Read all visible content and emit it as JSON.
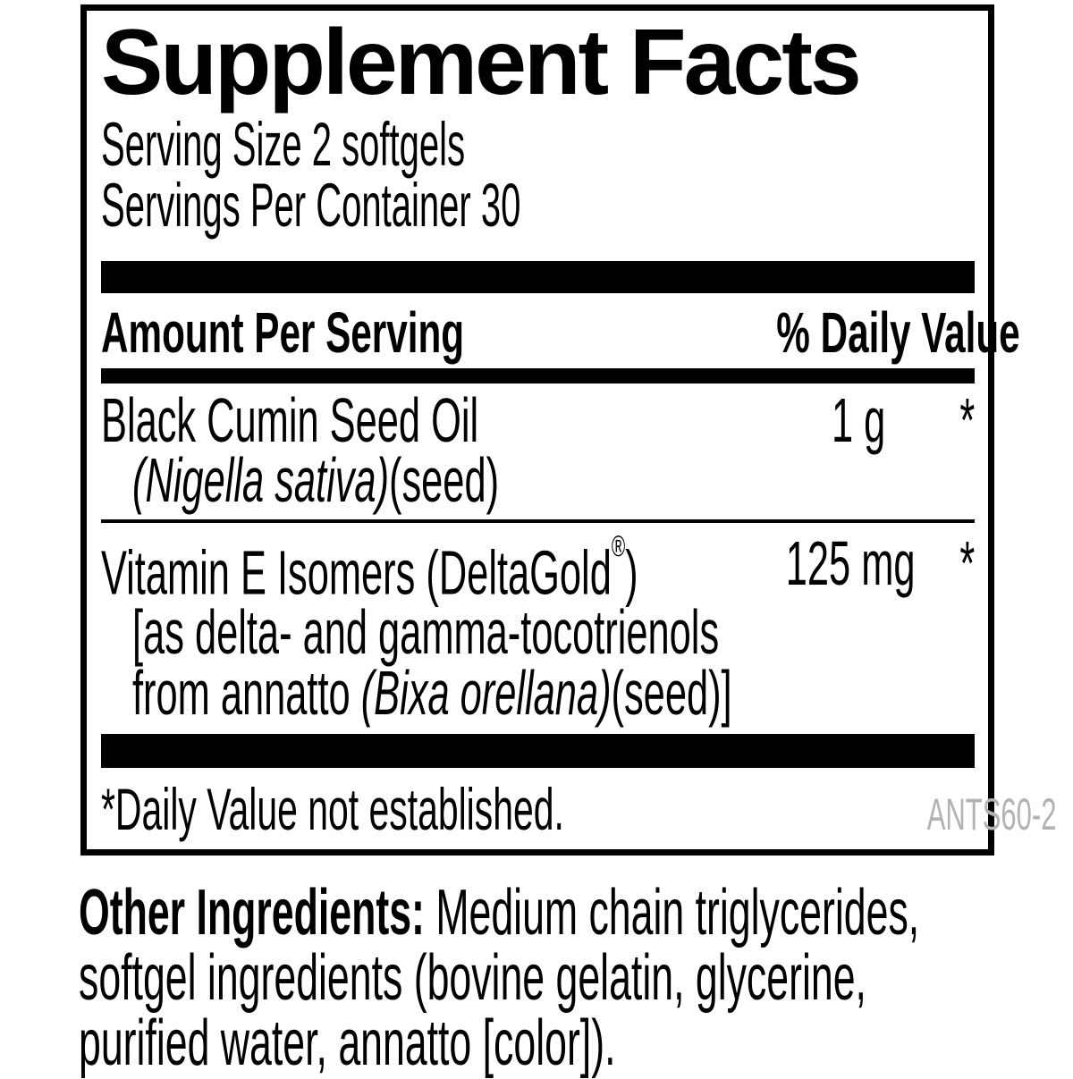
{
  "panel": {
    "title": "Supplement Facts",
    "serving_size_line": "Serving Size 2 softgels",
    "servings_line": "Servings Per Container 30",
    "header": {
      "amount_label": "Amount Per Serving",
      "dv_label": "% Daily Value"
    },
    "rows": [
      {
        "name": "Black Cumin Seed Oil",
        "amount": "1 g",
        "dv": "*",
        "sub": [
          {
            "pre": "",
            "it": "(Nigella sativa)",
            "post": "(seed)"
          }
        ]
      },
      {
        "name_pre": "Vitamin E Isomers (DeltaGold",
        "reg": "®",
        "name_post": ")",
        "amount": "125 mg",
        "dv": "*",
        "sub": [
          {
            "pre": "[as delta- and gamma-tocotrienols",
            "it": "",
            "post": ""
          },
          {
            "pre": "from annatto ",
            "it": "(Bixa orellana)",
            "post": "(seed)]"
          }
        ]
      }
    ],
    "footnote": "*Daily Value not established.",
    "product_code": "ANTS60-2"
  },
  "other_ingredients": {
    "lead": "Other Ingredients:",
    "line1_rest": " Medium chain triglycerides,",
    "line2": "softgel ingredients (bovine gelatin, glycerine,",
    "line3": "purified water, annatto [color])."
  },
  "colors": {
    "ink": "#000000",
    "muted": "#b3b3b3"
  }
}
